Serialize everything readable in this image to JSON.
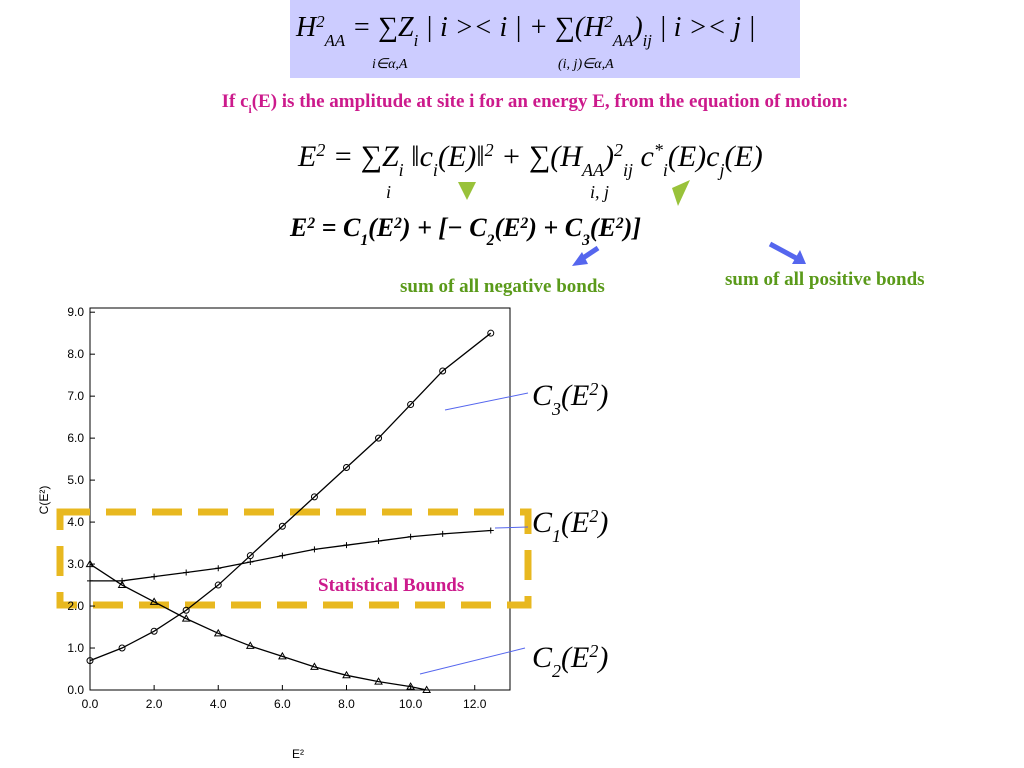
{
  "equation_1": {
    "parts": [
      {
        "text": "H"
      },
      {
        "text": "2",
        "style": "sup"
      },
      {
        "text": "AA",
        "style": "sub"
      },
      {
        "text": " = ∑Z"
      },
      {
        "text": "i",
        "style": "sub"
      },
      {
        "text": " | i >< i | + ∑(H"
      },
      {
        "text": "2",
        "style": "sup"
      },
      {
        "text": "AA",
        "style": "sub"
      },
      {
        "text": ")"
      },
      {
        "text": "ij",
        "style": "sub"
      },
      {
        "text": " | i >< j |"
      }
    ],
    "under": [
      "i∈α,A",
      "(i, j)∈α,A"
    ]
  },
  "heading": {
    "parts": [
      {
        "text": "If c"
      },
      {
        "text": "i",
        "style": "sub"
      },
      {
        "text": "(E) is the amplitude at site i for an energy E, from the equation of motion:"
      }
    ]
  },
  "equation_2": {
    "parts": [
      {
        "text": "E"
      },
      {
        "text": "2",
        "style": "sup"
      },
      {
        "text": " = ∑Z"
      },
      {
        "text": "i",
        "style": "sub"
      },
      {
        "text": " ‖c"
      },
      {
        "text": "i",
        "style": "sub"
      },
      {
        "text": "(E)‖"
      },
      {
        "text": "2",
        "style": "sup"
      },
      {
        "text": " + ∑(H"
      },
      {
        "text": "AA",
        "style": "sub"
      },
      {
        "text": ")"
      },
      {
        "text": "2",
        "style": "sup"
      },
      {
        "text": "ij",
        "style": "sub"
      },
      {
        "text": " c"
      },
      {
        "text": "*",
        "style": "sup"
      },
      {
        "text": "i",
        "style": "sub"
      },
      {
        "text": "(E)c"
      },
      {
        "text": "j",
        "style": "sub"
      },
      {
        "text": "(E)"
      }
    ],
    "under": [
      "i",
      "i, j"
    ]
  },
  "equation_3": {
    "parts": [
      {
        "text": "E"
      },
      {
        "text": "2",
        "style": "sup"
      },
      {
        "text": " = C"
      },
      {
        "text": "1",
        "style": "sub"
      },
      {
        "text": "(E"
      },
      {
        "text": "2",
        "style": "sup"
      },
      {
        "text": ") + [− C"
      },
      {
        "text": "2",
        "style": "sub"
      },
      {
        "text": "(E"
      },
      {
        "text": "2",
        "style": "sup"
      },
      {
        "text": ") + C"
      },
      {
        "text": "3",
        "style": "sub"
      },
      {
        "text": "(E"
      },
      {
        "text": "2",
        "style": "sup"
      },
      {
        "text": ")]"
      }
    ]
  },
  "negative_label": "sum of all negative bonds",
  "positive_label": "sum of all positive bonds",
  "chart_data": {
    "type": "line",
    "xlabel": "E²",
    "ylabel": "C(E²)",
    "xlim": [
      0,
      13.1
    ],
    "ylim": [
      0,
      9.1
    ],
    "xticks": [
      {
        "value": 0,
        "label": "0.0"
      },
      {
        "value": 2,
        "label": "2.0"
      },
      {
        "value": 4,
        "label": "4.0"
      },
      {
        "value": 6,
        "label": "6.0"
      },
      {
        "value": 8,
        "label": "8.0"
      },
      {
        "value": 10,
        "label": "10.0"
      },
      {
        "value": 12,
        "label": "12.0"
      }
    ],
    "yticks": [
      {
        "value": 0,
        "label": "0.0"
      },
      {
        "value": 1,
        "label": "1.0"
      },
      {
        "value": 2,
        "label": "2.0"
      },
      {
        "value": 3,
        "label": "3.0"
      },
      {
        "value": 4,
        "label": "4.0"
      },
      {
        "value": 5,
        "label": "5.0"
      },
      {
        "value": 6,
        "label": "6.0"
      },
      {
        "value": 7,
        "label": "7.0"
      },
      {
        "value": 8,
        "label": "8.0"
      },
      {
        "value": 9,
        "label": "9.0"
      }
    ],
    "series": [
      {
        "marker": "circle",
        "color": "#000000",
        "x": [
          0,
          1,
          2,
          3,
          4,
          5,
          6,
          7,
          8,
          9,
          10,
          11,
          12.5
        ],
        "values": [
          0.7,
          1.0,
          1.4,
          1.9,
          2.5,
          3.2,
          3.9,
          4.6,
          5.3,
          6.0,
          6.8,
          7.6,
          8.5
        ]
      },
      {
        "marker": "plus",
        "color": "#000000",
        "x": [
          0,
          1,
          2,
          3,
          4,
          5,
          6,
          7,
          8,
          9,
          10,
          11,
          12.5
        ],
        "values": [
          2.6,
          2.6,
          2.7,
          2.8,
          2.9,
          3.05,
          3.2,
          3.35,
          3.45,
          3.55,
          3.65,
          3.72,
          3.8
        ]
      },
      {
        "marker": "triangle",
        "color": "#000000",
        "x": [
          0,
          1,
          2,
          3,
          4,
          5,
          6,
          7,
          8,
          9,
          10,
          10.5
        ],
        "values": [
          3.0,
          2.5,
          2.1,
          1.7,
          1.35,
          1.05,
          0.8,
          0.55,
          0.35,
          0.2,
          0.08,
          0
        ]
      }
    ],
    "annotations": [
      {
        "parts": [
          {
            "text": "C"
          },
          {
            "text": "3",
            "style": "sub"
          },
          {
            "text": "(E"
          },
          {
            "text": "2",
            "style": "sup"
          },
          {
            "text": ")"
          }
        ]
      },
      {
        "parts": [
          {
            "text": "C"
          },
          {
            "text": "1",
            "style": "sub"
          },
          {
            "text": "(E"
          },
          {
            "text": "2",
            "style": "sup"
          },
          {
            "text": ")"
          }
        ]
      },
      {
        "parts": [
          {
            "text": "C"
          },
          {
            "text": "2",
            "style": "sub"
          },
          {
            "text": "(E"
          },
          {
            "text": "2",
            "style": "sup"
          },
          {
            "text": ")"
          }
        ]
      }
    ],
    "box_label": "Statistical Bounds"
  }
}
